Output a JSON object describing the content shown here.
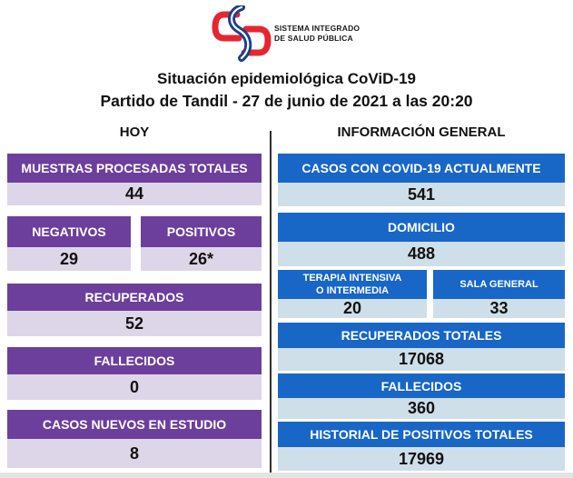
{
  "logo": {
    "line1": "SISTEMA INTEGRADO",
    "line2": "DE SALUD PÚBLICA"
  },
  "title": {
    "line1": "Situación epidemiológica CoViD-19",
    "line2": "Partido de Tandil - 27 de junio de 2021 a las 20:20"
  },
  "hoy": {
    "heading": "HOY",
    "muestras": {
      "label": "MUESTRAS PROCESADAS TOTALES",
      "value": "44"
    },
    "negativos": {
      "label": "NEGATIVOS",
      "value": "29"
    },
    "positivos": {
      "label": "POSITIVOS",
      "value": "26*"
    },
    "recuperados": {
      "label": "RECUPERADOS",
      "value": "52"
    },
    "fallecidos": {
      "label": "FALLECIDOS",
      "value": "0"
    },
    "casos_nuevos": {
      "label": "CASOS NUEVOS EN ESTUDIO",
      "value": "8"
    }
  },
  "general": {
    "heading": "INFORMACIÓN GENERAL",
    "casos_actuales": {
      "label": "CASOS CON COVID-19 ACTUALMENTE",
      "value": "541"
    },
    "domicilio": {
      "label": "DOMICILIO",
      "value": "488"
    },
    "terapia": {
      "label_line1": "TERAPIA INTENSIVA",
      "label_line2": "O INTERMEDIA",
      "value": "20"
    },
    "sala_general": {
      "label": "SALA GENERAL",
      "value": "33"
    },
    "recuperados_totales": {
      "label": "RECUPERADOS TOTALES",
      "value": "17068"
    },
    "fallecidos": {
      "label": "FALLECIDOS",
      "value": "360"
    },
    "historial": {
      "label": "HISTORIAL DE POSITIVOS TOTALES",
      "value": "17969"
    }
  },
  "colors": {
    "purple_header": "#6d3f9c",
    "purple_value_bg": "#ddd6e8",
    "blue_header": "#1866c6",
    "blue_value_bg": "#cfdfe9",
    "logo_red": "#e5262f",
    "logo_blue": "#1b3f8f"
  }
}
